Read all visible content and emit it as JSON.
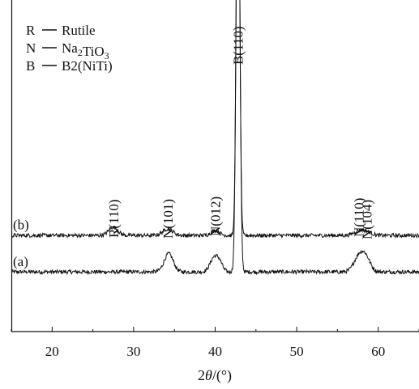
{
  "chart_data": {
    "type": "line",
    "xlabel": "2θ/(°)",
    "xlim": [
      15,
      65
    ],
    "x_ticks": [
      20,
      30,
      40,
      50,
      60
    ],
    "y_ticks_shown": false,
    "grid": false,
    "legend_position": "top-left",
    "legend": [
      {
        "symbol": "R",
        "label": "Rutile"
      },
      {
        "symbol": "N",
        "label": "Na2TiO3",
        "sub": [
          [
            2,
            3
          ],
          [
            6,
            7
          ]
        ]
      },
      {
        "symbol": "B",
        "label": "B2(NiTi)"
      }
    ],
    "series": [
      {
        "name": "(a)",
        "baseline": 0.18,
        "noise": 0.006,
        "peaks": [
          {
            "x": 34.3,
            "height": 0.055,
            "width": 0.55
          },
          {
            "x": 39.9,
            "height": 0.045,
            "width": 0.5
          },
          {
            "x": 40.6,
            "height": 0.02,
            "width": 0.35
          },
          {
            "x": 42.8,
            "height": 1.4,
            "width": 0.22
          },
          {
            "x": 57.6,
            "height": 0.045,
            "width": 0.6
          },
          {
            "x": 58.5,
            "height": 0.04,
            "width": 0.55
          }
        ]
      },
      {
        "name": "(b)",
        "baseline": 0.29,
        "noise": 0.006,
        "peaks": [
          {
            "x": 27.5,
            "height": 0.025,
            "width": 0.55
          },
          {
            "x": 34.2,
            "height": 0.02,
            "width": 0.6
          },
          {
            "x": 40.0,
            "height": 0.015,
            "width": 0.5
          },
          {
            "x": 42.8,
            "height": 1.4,
            "width": 0.2
          },
          {
            "x": 57.6,
            "height": 0.013,
            "width": 0.6
          },
          {
            "x": 58.6,
            "height": 0.01,
            "width": 0.6
          }
        ]
      }
    ],
    "annotations": [
      {
        "text": "R(110)",
        "x": 27.5
      },
      {
        "text": "N(101)",
        "x": 34.2
      },
      {
        "text": "N(012)",
        "x": 40.0
      },
      {
        "text": "B(110)",
        "x": 42.8
      },
      {
        "text": "N(110)",
        "x": 57.6
      },
      {
        "text": "N(104)",
        "x": 58.6
      }
    ]
  }
}
